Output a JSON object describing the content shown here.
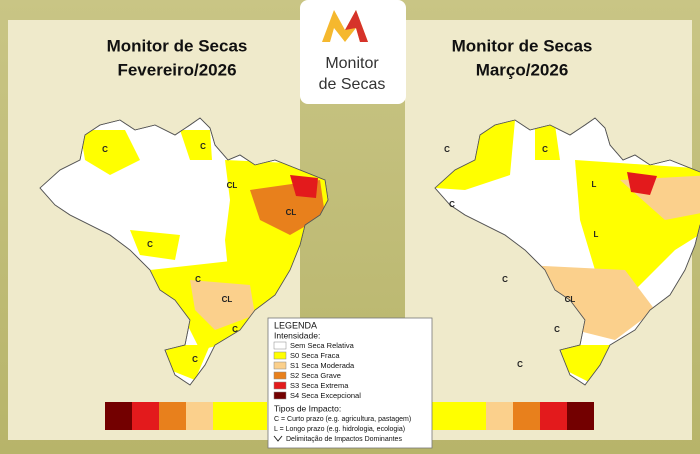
{
  "logo": {
    "line1": "Monitor",
    "line2": "de Secas"
  },
  "maps": [
    {
      "title_line1": "Monitor de Secas",
      "title_line2": "Fevereiro/2026",
      "labels": [
        "C",
        "C",
        "CL",
        "CL",
        "C",
        "C",
        "CL",
        "C",
        "C"
      ]
    },
    {
      "title_line1": "Monitor de Secas",
      "title_line2": "Março/2026",
      "labels": [
        "C",
        "C",
        "L",
        "C",
        "L",
        "C",
        "CL",
        "C",
        "C"
      ]
    }
  ],
  "legend": {
    "title": "LEGENDA",
    "subtitle": "Intensidade:",
    "items": [
      {
        "label": "Sem Seca Relativa",
        "color": "#ffffff"
      },
      {
        "label": "S0 Seca Fraca",
        "color": "#ffff00"
      },
      {
        "label": "S1 Seca Moderada",
        "color": "#fbd08c"
      },
      {
        "label": "S2 Seca Grave",
        "color": "#e8801c"
      },
      {
        "label": "S3 Seca Extrema",
        "color": "#e31a1c"
      },
      {
        "label": "S4 Seca Excepcional",
        "color": "#730000"
      }
    ],
    "impact_title": "Tipos de Impacto:",
    "impacts": [
      "C = Curto prazo (e.g. agricultura, pastagem)",
      "L = Longo prazo (e.g. hidrologia, ecologia)",
      "Delimitação de Impactos Dominantes"
    ]
  }
}
